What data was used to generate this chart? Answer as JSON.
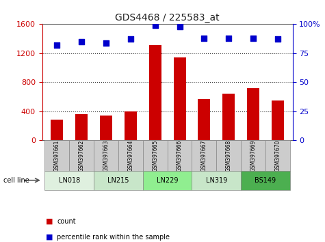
{
  "title": "GDS4468 / 225583_at",
  "samples": [
    "GSM397661",
    "GSM397662",
    "GSM397663",
    "GSM397664",
    "GSM397665",
    "GSM397666",
    "GSM397667",
    "GSM397668",
    "GSM397669",
    "GSM397670"
  ],
  "counts": [
    290,
    360,
    345,
    395,
    1310,
    1140,
    570,
    645,
    720,
    550
  ],
  "percentile_ranks": [
    82,
    85,
    84,
    87,
    99,
    98,
    88,
    88,
    88,
    87
  ],
  "cell_lines": [
    {
      "name": "LN018",
      "samples": [
        0,
        1
      ],
      "color": "#dff0df"
    },
    {
      "name": "LN215",
      "samples": [
        2,
        3
      ],
      "color": "#c8e6c9"
    },
    {
      "name": "LN229",
      "samples": [
        4,
        5
      ],
      "color": "#90ee90"
    },
    {
      "name": "LN319",
      "samples": [
        6,
        7
      ],
      "color": "#c8e6c9"
    },
    {
      "name": "BS149",
      "samples": [
        8,
        9
      ],
      "color": "#4caf50"
    }
  ],
  "bar_color": "#cc0000",
  "scatter_color": "#0000cc",
  "left_ylim": [
    0,
    1600
  ],
  "left_yticks": [
    0,
    400,
    800,
    1200,
    1600
  ],
  "right_ylim": [
    0,
    100
  ],
  "right_yticks": [
    0,
    25,
    50,
    75,
    100
  ],
  "title_color": "#222222",
  "left_tick_color": "#cc0000",
  "right_tick_color": "#0000cc",
  "bar_width": 0.5,
  "grid_color": "#333333",
  "cell_line_label": "cell line",
  "legend_count_label": "count",
  "legend_pct_label": "percentile rank within the sample"
}
